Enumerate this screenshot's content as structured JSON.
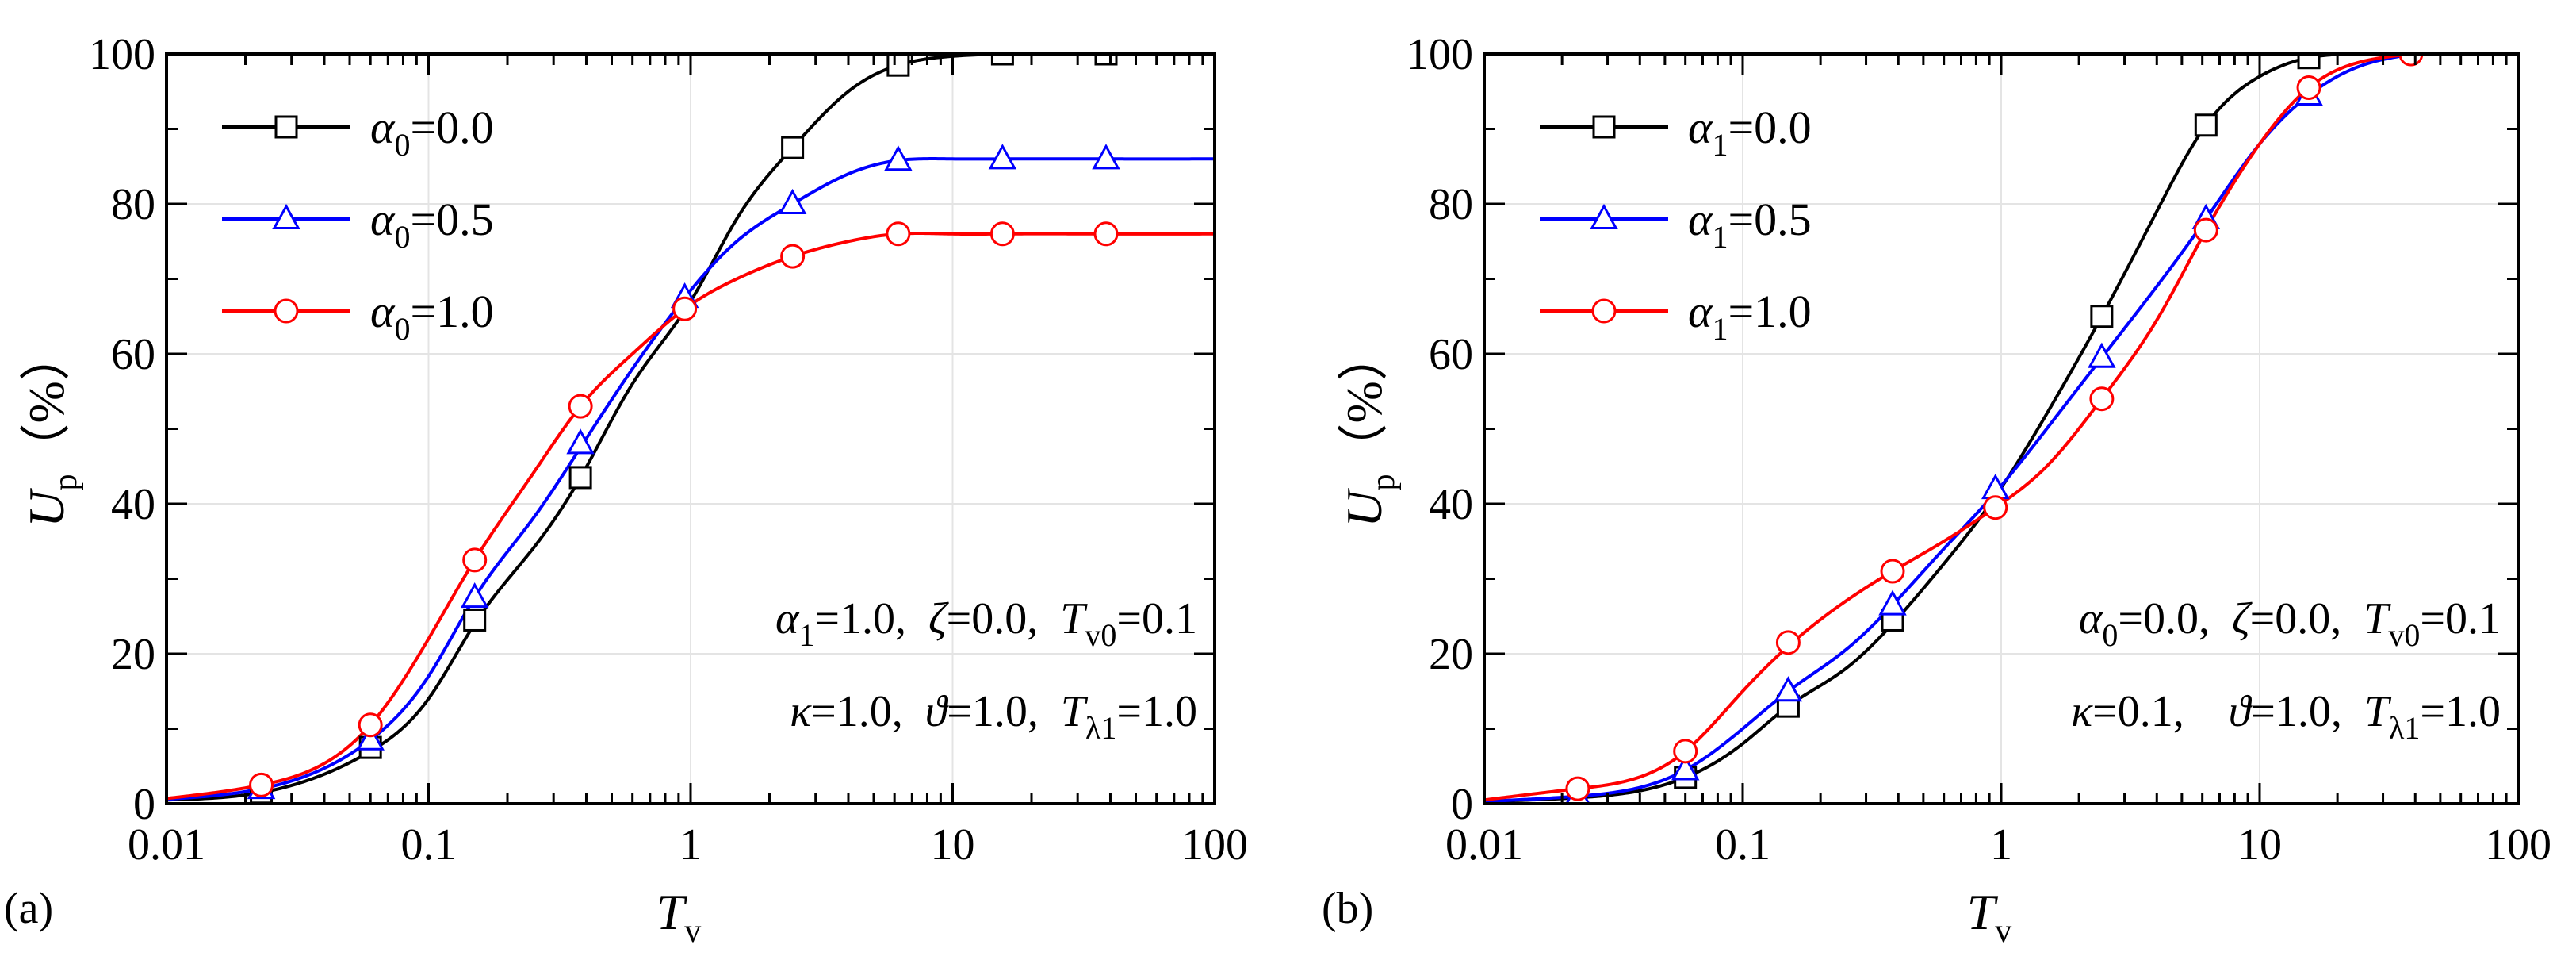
{
  "chart_data": [
    {
      "type": "line",
      "panel_label": "(a)",
      "xscale": "log",
      "xlim": [
        0.01,
        100
      ],
      "ylim": [
        0,
        100
      ],
      "xticks": [
        "0.01",
        "0.1",
        "1",
        "10",
        "100"
      ],
      "yticks": [
        "0",
        "20",
        "40",
        "60",
        "80",
        "100"
      ],
      "xlabel": {
        "main": "T",
        "sub": "v"
      },
      "ylabel": {
        "main": "U",
        "sub": "p",
        "unit": "（%）"
      },
      "grid": true,
      "legend_position": "top-left",
      "legend_var": {
        "symbol": "α",
        "sub": "0"
      },
      "series": [
        {
          "name": "α0=0.0",
          "legend_value": "=0.0",
          "color": "#000000",
          "marker": "square",
          "curve": {
            "x": [
              0.01,
              0.023,
              0.06,
              0.1,
              0.15,
              0.25,
              0.38,
              0.6,
              1.0,
              1.5,
              2.45,
              4.0,
              6.2,
              10,
              15.5,
              40,
              100
            ],
            "y": [
              0.5,
              1.5,
              7,
              14,
              24,
              34,
              43.5,
              56,
              67,
              78,
              87.5,
              95,
              98.5,
              99.7,
              100,
              100,
              100
            ]
          },
          "markers": {
            "x": [
              0.023,
              0.06,
              0.15,
              0.38,
              2.45,
              6.2,
              15.5,
              38.5
            ],
            "y": [
              1.5,
              7.5,
              24.5,
              43.5,
              87.5,
              98.5,
              100,
              100
            ]
          }
        },
        {
          "name": "α0=0.5",
          "legend_value": "=0.5",
          "color": "#0000ff",
          "marker": "triangle",
          "curve": {
            "x": [
              0.01,
              0.023,
              0.06,
              0.1,
              0.15,
              0.25,
              0.38,
              0.6,
              0.95,
              1.5,
              2.45,
              4.0,
              6.2,
              10,
              15.5,
              40,
              100
            ],
            "y": [
              0.6,
              2,
              8.5,
              17,
              27.5,
              38,
              47.5,
              58,
              67.5,
              75,
              80,
              84,
              85.8,
              86,
              86,
              86,
              86
            ]
          },
          "markers": {
            "x": [
              0.023,
              0.06,
              0.15,
              0.38,
              0.95,
              2.45,
              6.2,
              15.5,
              38.5
            ],
            "y": [
              2,
              8.5,
              27.5,
              48,
              67.5,
              80,
              85.8,
              86,
              86
            ]
          }
        },
        {
          "name": "α0=1.0",
          "legend_value": "=1.0",
          "color": "#ff0000",
          "marker": "circle",
          "curve": {
            "x": [
              0.01,
              0.023,
              0.06,
              0.1,
              0.15,
              0.25,
              0.38,
              0.6,
              0.95,
              1.5,
              2.45,
              4.0,
              6.2,
              10,
              15.5,
              40,
              100
            ],
            "y": [
              0.7,
              2.5,
              10.5,
              22,
              32.5,
              44,
              53,
              60,
              66,
              70,
              73,
              75,
              76,
              76,
              76,
              76,
              76
            ]
          },
          "markers": {
            "x": [
              0.023,
              0.06,
              0.15,
              0.38,
              0.95,
              2.45,
              6.2,
              15.5,
              38.5
            ],
            "y": [
              2.5,
              10.5,
              32.5,
              53,
              66,
              73,
              76,
              76,
              76
            ]
          }
        }
      ],
      "annotation": {
        "line1": [
          {
            "sym": "α",
            "sub": "1",
            "val": "=1.0,  "
          },
          {
            "sym": "ζ",
            "sub": "",
            "val": "=0.0,  "
          },
          {
            "sym": "T",
            "sub": "v0",
            "val": "=0.1"
          }
        ],
        "line2": [
          {
            "sym": "κ",
            "sub": "",
            "val": "=1.0,  "
          },
          {
            "sym": "ϑ",
            "sub": "",
            "val": "=1.0,  "
          },
          {
            "sym": "T",
            "sub": "λ1",
            "val": "=1.0"
          }
        ]
      }
    },
    {
      "type": "line",
      "panel_label": "(b)",
      "xscale": "log",
      "xlim": [
        0.01,
        100
      ],
      "ylim": [
        0,
        100
      ],
      "xticks": [
        "0.01",
        "0.1",
        "1",
        "10",
        "100"
      ],
      "yticks": [
        "0",
        "20",
        "40",
        "60",
        "80",
        "100"
      ],
      "xlabel": {
        "main": "T",
        "sub": "v"
      },
      "ylabel": {
        "main": "U",
        "sub": "p",
        "unit": "（%）"
      },
      "grid": true,
      "legend_position": "top-left",
      "legend_var": {
        "symbol": "α",
        "sub": "1"
      },
      "series": [
        {
          "name": "α1=0.0",
          "legend_value": "=0.0",
          "color": "#000000",
          "marker": "square",
          "curve": {
            "x": [
              0.01,
              0.023,
              0.06,
              0.1,
              0.15,
              0.25,
              0.38,
              0.6,
              0.95,
              1.5,
              2.45,
              4.0,
              6.2,
              10,
              15.5,
              25,
              40
            ],
            "y": [
              0.3,
              0.8,
              3.5,
              8,
              13,
              18,
              24,
              32,
              41,
              52,
              65,
              79,
              90.5,
              97,
              99.5,
              100,
              100
            ]
          },
          "markers": {
            "x": [
              0.06,
              0.15,
              0.38,
              2.45,
              6.2,
              15.5
            ],
            "y": [
              3.5,
              13,
              24.5,
              65,
              90.5,
              99.5
            ]
          }
        },
        {
          "name": "α1=0.5",
          "legend_value": "=0.5",
          "color": "#0000ff",
          "marker": "triangle",
          "curve": {
            "x": [
              0.01,
              0.023,
              0.06,
              0.1,
              0.15,
              0.25,
              0.38,
              0.6,
              0.95,
              1.5,
              2.45,
              4.0,
              6.2,
              10,
              15.5,
              25,
              40
            ],
            "y": [
              0.3,
              1,
              4.5,
              10,
              15,
              20.5,
              26.5,
              34,
              41.5,
              50,
              59.5,
              69,
              78,
              88,
              94.5,
              98.5,
              100
            ]
          },
          "markers": {
            "x": [
              0.023,
              0.06,
              0.15,
              0.38,
              0.95,
              2.45,
              6.2,
              15.5
            ],
            "y": [
              1,
              4.5,
              15,
              26.5,
              42,
              59.5,
              78,
              94.5
            ]
          }
        },
        {
          "name": "α1=1.0",
          "legend_value": "=1.0",
          "color": "#ff0000",
          "marker": "circle",
          "curve": {
            "x": [
              0.01,
              0.023,
              0.06,
              0.1,
              0.15,
              0.25,
              0.38,
              0.6,
              0.95,
              1.5,
              2.45,
              4.0,
              6.2,
              10,
              15.5,
              25,
              40
            ],
            "y": [
              0.5,
              2,
              7,
              15,
              21,
              27,
              31,
              35,
              39.5,
              45,
              54,
              64.5,
              76.5,
              88,
              95.5,
              99,
              100
            ]
          },
          "markers": {
            "x": [
              0.023,
              0.06,
              0.15,
              0.38,
              0.95,
              2.45,
              6.2,
              15.5,
              38.5
            ],
            "y": [
              2,
              7,
              21.5,
              31,
              39.5,
              54,
              76.5,
              95.5,
              100
            ]
          }
        }
      ],
      "annotation": {
        "line1": [
          {
            "sym": "α",
            "sub": "0",
            "val": "=0.0,  "
          },
          {
            "sym": "ζ",
            "sub": "",
            "val": "=0.0,  "
          },
          {
            "sym": "T",
            "sub": "v0",
            "val": "=0.1"
          }
        ],
        "line2": [
          {
            "sym": "κ",
            "sub": "",
            "val": "=0.1,    "
          },
          {
            "sym": "ϑ",
            "sub": "",
            "val": "=1.0,  "
          },
          {
            "sym": "T",
            "sub": "λ1",
            "val": "=1.0"
          }
        ]
      }
    }
  ]
}
